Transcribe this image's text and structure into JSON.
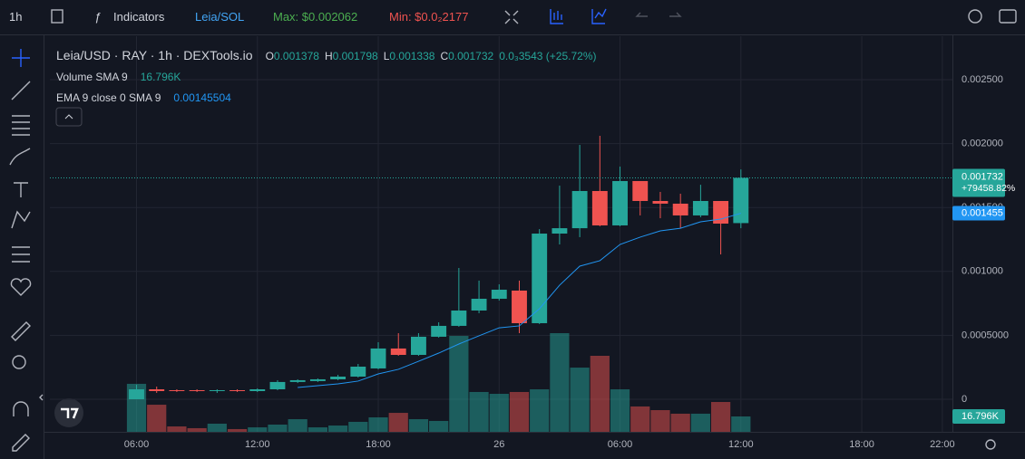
{
  "toolbar": {
    "interval": "1h",
    "indicators": "Indicators",
    "pair": "Leia/SOL",
    "max": "Max: $0.002062",
    "min": "Min: $0.0₂2177"
  },
  "chart_data": {
    "type": "candlestick",
    "title": "Leia/USD · RAY · 1h · DEXTools.io",
    "ohlc_labels": [
      "O",
      "H",
      "L",
      "C"
    ],
    "change": "0.0₃3543 (+25.72%)",
    "open": [
      0,
      7.79e-05,
      7.08e-05,
      7.08e-05,
      6.37e-05,
      7.08e-05,
      6.37e-05,
      7.79e-05,
      0.000135,
      0.000142,
      0.000156,
      0.000177,
      0.000241,
      0.000397,
      0.000347,
      0.000489,
      0.000574,
      0.000694,
      0.000786,
      0.00085,
      0.000595,
      0.001296,
      0.001338,
      0.001629,
      0.00136,
      0.001707,
      0.001551,
      0.00153,
      0.001438,
      0.001551,
      0.001378
    ],
    "high": [
      0.000113,
      9.91e-05,
      7.79e-05,
      7.79e-05,
      7.79e-05,
      7.79e-05,
      8.5e-05,
      0.000149,
      0.000156,
      0.000163,
      0.000191,
      0.000276,
      0.000446,
      0.000517,
      0.000517,
      0.000602,
      0.001027,
      0.000928,
      0.000899,
      0.000928,
      0.001331,
      0.001671,
      0.00199,
      0.002061,
      0.00182,
      0.001707,
      0.001622,
      0.001608,
      0.001678,
      0.001551,
      0.001798
    ],
    "low": [
      0,
      4.96e-05,
      5.67e-05,
      5.67e-05,
      4.96e-05,
      5.67e-05,
      5.67e-05,
      7.08e-05,
      0.000127,
      0.000135,
      0.000149,
      0.00017,
      0.000234,
      0.00034,
      0.00034,
      0.000482,
      0.000567,
      0.000673,
      0.000772,
      0.000517,
      0.000588,
      0.001211,
      0.001268,
      0.001353,
      0.001353,
      0.001438,
      0.001416,
      0.001338,
      0.001424,
      0.001133,
      0.001338
    ],
    "close": [
      7.79e-05,
      6.37e-05,
      6.37e-05,
      6.37e-05,
      7.08e-05,
      6.37e-05,
      7.79e-05,
      0.000135,
      0.000149,
      0.000156,
      0.000177,
      0.000255,
      0.000397,
      0.000347,
      0.000489,
      0.000574,
      0.000694,
      0.000786,
      0.000857,
      0.000595,
      0.001296,
      0.001338,
      0.001629,
      0.00136,
      0.001707,
      0.001551,
      0.00153,
      0.001438,
      0.001551,
      0.001374,
      0.001732
    ],
    "up_color": "#26a69a",
    "down_color": "#ef5350",
    "volume": {
      "name": "Volume SMA 9",
      "values": [
        52400,
        29600,
        5900,
        4000,
        8900,
        3000,
        4900,
        7900,
        13800,
        4900,
        6900,
        10900,
        15800,
        20700,
        13800,
        11900,
        104700,
        43500,
        41500,
        43500,
        46400,
        107700,
        70100,
        83000,
        46400,
        27700,
        23700,
        19800,
        19800,
        32600,
        16796
      ],
      "last_label": "16.796K"
    },
    "ema": {
      "name": "EMA 9 close 0 SMA 9",
      "color": "#2196f3",
      "last_value": 0.00145504,
      "axis_label": "0.001455",
      "values": [
        null,
        null,
        null,
        null,
        null,
        null,
        null,
        null,
        9.2e-05,
        0.000106,
        0.00012,
        0.000142,
        0.000198,
        0.000234,
        0.000297,
        0.000361,
        0.000432,
        0.000496,
        0.000559,
        0.000574,
        0.000708,
        0.000892,
        0.001041,
        0.001084,
        0.001211,
        0.001268,
        0.001317,
        0.001338,
        0.001388,
        0.001409,
        0.00145504
      ]
    },
    "price_change_label": "+79458.82%",
    "xlim": [
      -4.3,
      40.5
    ],
    "xticks": [
      {
        "value": 0,
        "label": "06:00"
      },
      {
        "value": 6,
        "label": "12:00"
      },
      {
        "value": 12,
        "label": "18:00"
      },
      {
        "value": 18,
        "label": "26"
      },
      {
        "value": 24,
        "label": "06:00"
      },
      {
        "value": 30,
        "label": "12:00"
      },
      {
        "value": 36,
        "label": "18:00"
      },
      {
        "value": 40,
        "label": "22:00"
      }
    ],
    "ylim": [
      -0.000255,
      0.00284
    ],
    "yticks": [
      0,
      {
        "value": 0.0005,
        "label": "0.0005000"
      },
      {
        "value": 0.001,
        "label": "0.001000"
      },
      {
        "value": 0.0015,
        "label": "0.001500"
      },
      {
        "value": 0.002,
        "label": "0.002000"
      },
      {
        "value": 0.0025,
        "label": "0.002500"
      }
    ],
    "grid": true
  }
}
